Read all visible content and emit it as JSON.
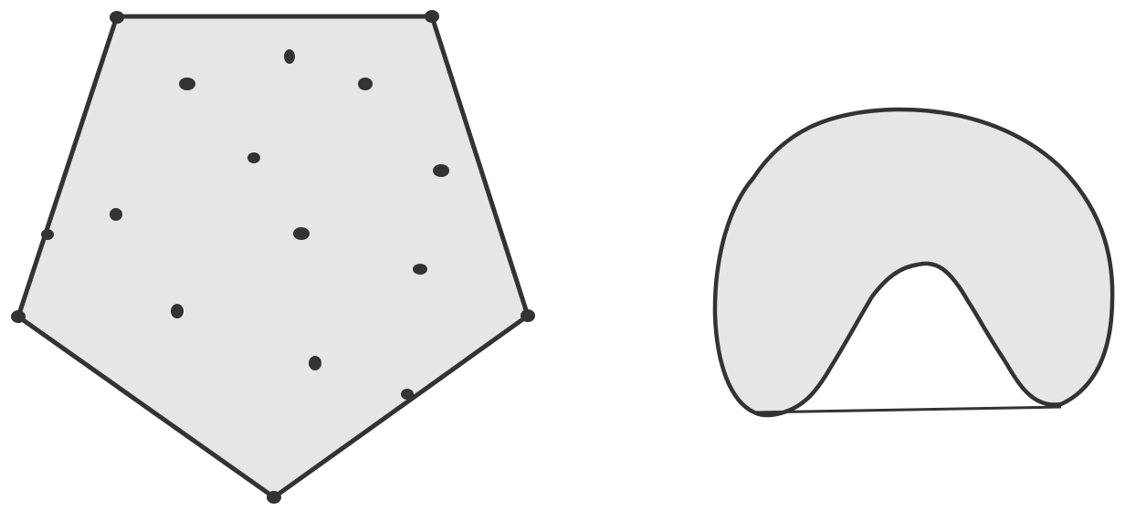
{
  "colors": {
    "background": "#ffffff",
    "shape_fill": "#e6e6e6",
    "stroke": "#333333",
    "dot": "#333333"
  },
  "figures": [
    {
      "name": "pentagon-hull-figure",
      "shape": "polygon",
      "dot_count": 18
    },
    {
      "name": "blob-figure",
      "shape": "arch-blob",
      "dot_count": 0
    }
  ]
}
